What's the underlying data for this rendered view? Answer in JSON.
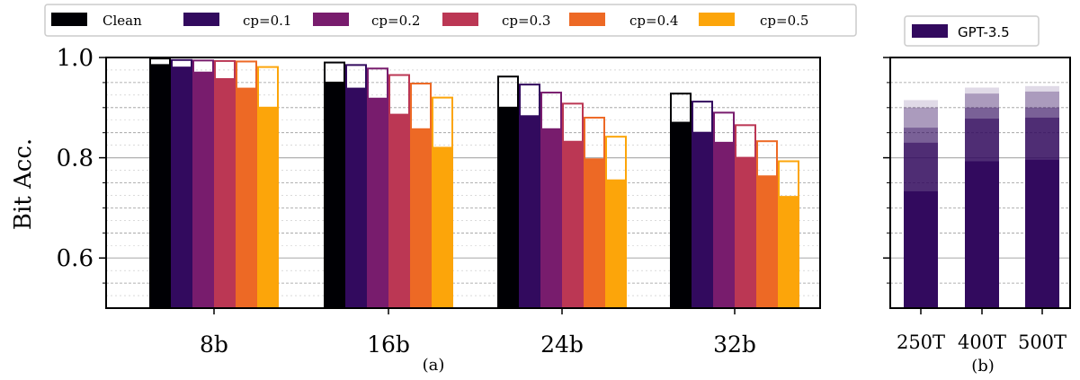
{
  "chart_data": [
    {
      "type": "bar",
      "panel_caption": "(a)",
      "ylabel": "Bit Acc.",
      "ylim": [
        0.5,
        1.0
      ],
      "yticks": [
        "0.6",
        "0.8",
        "1.0"
      ],
      "categories": [
        "8b",
        "16b",
        "24b",
        "32b"
      ],
      "legend_placement": "top",
      "bar_style": "filled bar with hollow outlined bar on top showing the higher value",
      "series": [
        {
          "name": "Clean",
          "color": "#000004",
          "values": [
            0.985,
            0.95,
            0.9,
            0.87
          ],
          "outline_top": [
            0.998,
            0.99,
            0.962,
            0.928
          ]
        },
        {
          "name": "cp=0.1",
          "color": "#320a5e",
          "values": [
            0.98,
            0.938,
            0.883,
            0.85
          ],
          "outline_top": [
            0.995,
            0.985,
            0.946,
            0.912
          ]
        },
        {
          "name": "cp=0.2",
          "color": "#781c6d",
          "values": [
            0.97,
            0.918,
            0.857,
            0.83
          ],
          "outline_top": [
            0.994,
            0.978,
            0.93,
            0.89
          ]
        },
        {
          "name": "cp=0.3",
          "color": "#bb3754",
          "values": [
            0.957,
            0.886,
            0.832,
            0.8
          ],
          "outline_top": [
            0.993,
            0.965,
            0.908,
            0.865
          ]
        },
        {
          "name": "cp=0.4",
          "color": "#ed6925",
          "values": [
            0.938,
            0.857,
            0.797,
            0.763
          ],
          "outline_top": [
            0.992,
            0.948,
            0.88,
            0.833
          ]
        },
        {
          "name": "cp=0.5",
          "color": "#fca50a",
          "values": [
            0.9,
            0.82,
            0.755,
            0.722
          ],
          "outline_top": [
            0.981,
            0.92,
            0.842,
            0.793
          ]
        }
      ]
    },
    {
      "type": "bar",
      "panel_caption": "(b)",
      "ylim": [
        0.5,
        1.0
      ],
      "categories": [
        "250T",
        "400T",
        "500T"
      ],
      "legend_placement": "top",
      "series": [
        {
          "name": "GPT-3.5",
          "color": "#320a5e",
          "values": [
            0.733,
            0.793,
            0.796
          ]
        }
      ],
      "stacked_lighter_segments": [
        {
          "level": 1,
          "opacity": 0.6,
          "values": [
            0.83,
            0.878,
            0.88
          ]
        },
        {
          "level": 2,
          "opacity": 0.4,
          "values": [
            0.86,
            0.9,
            0.9
          ]
        },
        {
          "level": 3,
          "opacity": 0.3,
          "values": [
            0.9,
            0.928,
            0.932
          ]
        },
        {
          "level": 4,
          "opacity": 0.15,
          "values": [
            0.915,
            0.94,
            0.943
          ]
        }
      ]
    }
  ]
}
